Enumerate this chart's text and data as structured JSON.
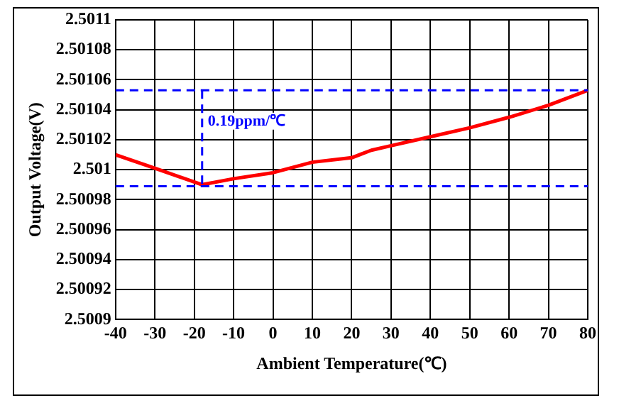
{
  "chart_data": {
    "type": "line",
    "xlabel": "Ambient Temperature(℃)",
    "ylabel": "Output Voltage(V)",
    "x": [
      -40,
      -30,
      -18,
      -10,
      0,
      10,
      20,
      25,
      30,
      40,
      50,
      60,
      70,
      80
    ],
    "series": [
      {
        "color": "#ff0000",
        "values": [
          2.50101,
          2.501001,
          2.50099,
          2.500994,
          2.500998,
          2.501005,
          2.501008,
          2.501013,
          2.501016,
          2.501022,
          2.501028,
          2.501035,
          2.501043,
          2.501053
        ]
      }
    ],
    "xlim": [
      -40,
      80
    ],
    "xticks": [
      -40,
      -30,
      -20,
      -10,
      0,
      10,
      20,
      30,
      40,
      50,
      60,
      70,
      80
    ],
    "ylim": [
      2.5009,
      2.5011
    ],
    "yticks": [
      2.5009,
      2.50092,
      2.50094,
      2.50096,
      2.50098,
      2.501,
      2.50102,
      2.50104,
      2.50106,
      2.50108,
      2.5011
    ],
    "grid": true,
    "legend": false,
    "marker": "none",
    "line_style": "solid",
    "ref_lines": [
      {
        "axis": "y",
        "value": 2.501053,
        "color": "#0000ff",
        "line_style": "dashed"
      },
      {
        "axis": "y",
        "value": 2.500989,
        "color": "#0000ff",
        "line_style": "dashed"
      },
      {
        "axis": "x",
        "value": -18,
        "color": "#0000ff",
        "line_style": "dashed"
      }
    ],
    "annotations": [
      "0.19ppm/℃"
    ]
  }
}
